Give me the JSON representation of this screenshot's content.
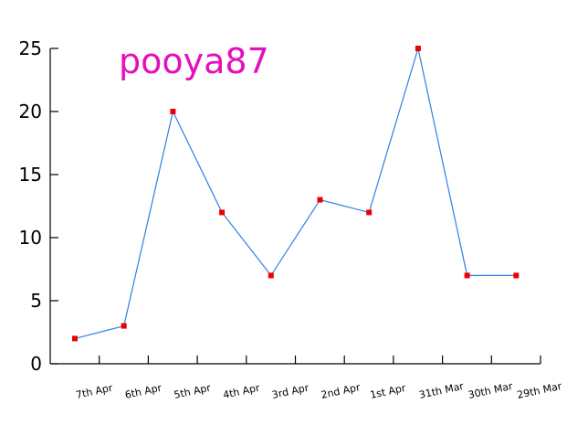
{
  "chart_data": {
    "type": "line",
    "title": "pooya87",
    "categories": [
      "7th Apr",
      "6th Apr",
      "5th Apr",
      "4th Apr",
      "3rd Apr",
      "2nd Apr",
      "1st Apr",
      "31th Mar",
      "30th Mar",
      "29th Mar"
    ],
    "series": [
      {
        "values": [
          2,
          3,
          20,
          12,
          7,
          13,
          12,
          25,
          7,
          7
        ]
      }
    ],
    "yticks": [
      "0",
      "5",
      "10",
      "15",
      "20",
      "25"
    ],
    "ylim": [
      0,
      25
    ],
    "grid": false,
    "xlabel": "",
    "ylabel": "",
    "colors": {
      "title": "#e60fb9",
      "line": "#2f7fe6",
      "marker": "#ee0000",
      "axis": "#000000"
    }
  }
}
